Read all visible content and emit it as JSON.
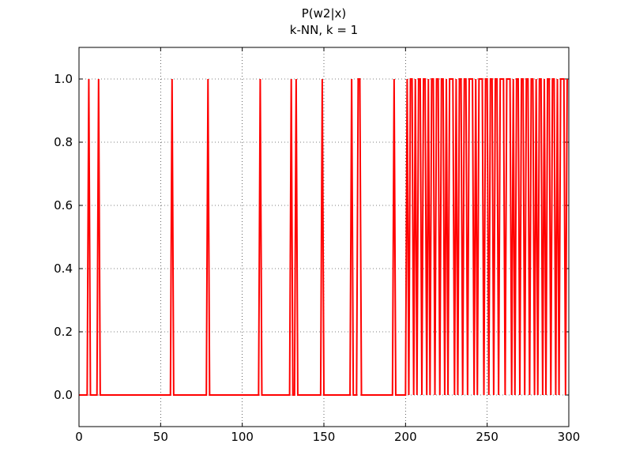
{
  "chart_data": {
    "type": "line",
    "title": "P(w2|x)",
    "subtitle": "k-NN, k = 1",
    "color": "#ff0000",
    "grid": true,
    "xlim": [
      0,
      300
    ],
    "ylim": [
      -0.1,
      1.1
    ],
    "xticks": [
      0,
      50,
      100,
      150,
      200,
      250,
      300
    ],
    "yticks": [
      {
        "value": 0,
        "label": "0.0"
      },
      0.2,
      0.4,
      0.6,
      0.8,
      {
        "value": 1,
        "label": "1.0"
      }
    ],
    "x": [
      0,
      1,
      2,
      3,
      4,
      5,
      6,
      7,
      8,
      9,
      10,
      11,
      12,
      13,
      14,
      15,
      16,
      17,
      18,
      19,
      20,
      21,
      22,
      23,
      24,
      25,
      26,
      27,
      28,
      29,
      30,
      31,
      32,
      33,
      34,
      35,
      36,
      37,
      38,
      39,
      40,
      41,
      42,
      43,
      44,
      45,
      46,
      47,
      48,
      49,
      50,
      51,
      52,
      53,
      54,
      55,
      56,
      57,
      58,
      59,
      60,
      61,
      62,
      63,
      64,
      65,
      66,
      67,
      68,
      69,
      70,
      71,
      72,
      73,
      74,
      75,
      76,
      77,
      78,
      79,
      80,
      81,
      82,
      83,
      84,
      85,
      86,
      87,
      88,
      89,
      90,
      91,
      92,
      93,
      94,
      95,
      96,
      97,
      98,
      99,
      100,
      101,
      102,
      103,
      104,
      105,
      106,
      107,
      108,
      109,
      110,
      111,
      112,
      113,
      114,
      115,
      116,
      117,
      118,
      119,
      120,
      121,
      122,
      123,
      124,
      125,
      126,
      127,
      128,
      129,
      130,
      131,
      132,
      133,
      134,
      135,
      136,
      137,
      138,
      139,
      140,
      141,
      142,
      143,
      144,
      145,
      146,
      147,
      148,
      149,
      150,
      151,
      152,
      153,
      154,
      155,
      156,
      157,
      158,
      159,
      160,
      161,
      162,
      163,
      164,
      165,
      166,
      167,
      168,
      169,
      170,
      171,
      172,
      173,
      174,
      175,
      176,
      177,
      178,
      179,
      180,
      181,
      182,
      183,
      184,
      185,
      186,
      187,
      188,
      189,
      190,
      191,
      192,
      193,
      194,
      195,
      196,
      197,
      198,
      199,
      200,
      201,
      202,
      203,
      204,
      205,
      206,
      207,
      208,
      209,
      210,
      211,
      212,
      213,
      214,
      215,
      216,
      217,
      218,
      219,
      220,
      221,
      222,
      223,
      224,
      225,
      226,
      227,
      228,
      229,
      230,
      231,
      232,
      233,
      234,
      235,
      236,
      237,
      238,
      239,
      240,
      241,
      242,
      243,
      244,
      245,
      246,
      247,
      248,
      249,
      250,
      251,
      252,
      253,
      254,
      255,
      256,
      257,
      258,
      259,
      260,
      261,
      262,
      263,
      264,
      265,
      266,
      267,
      268,
      269,
      270,
      271,
      272,
      273,
      274,
      275,
      276,
      277,
      278,
      279,
      280,
      281,
      282,
      283,
      284,
      285,
      286,
      287,
      288,
      289,
      290,
      291,
      292,
      293,
      294,
      295,
      296,
      297,
      298,
      299
    ],
    "values": [
      0,
      0,
      0,
      0,
      0,
      0,
      1,
      0,
      0,
      0,
      0,
      0,
      1,
      0,
      0,
      0,
      0,
      0,
      0,
      0,
      0,
      0,
      0,
      0,
      0,
      0,
      0,
      0,
      0,
      0,
      0,
      0,
      0,
      0,
      0,
      0,
      0,
      0,
      0,
      0,
      0,
      0,
      0,
      0,
      0,
      0,
      0,
      0,
      0,
      0,
      0,
      0,
      0,
      0,
      0,
      0,
      0,
      1,
      0,
      0,
      0,
      0,
      0,
      0,
      0,
      0,
      0,
      0,
      0,
      0,
      0,
      0,
      0,
      0,
      0,
      0,
      0,
      0,
      0,
      1,
      0,
      0,
      0,
      0,
      0,
      0,
      0,
      0,
      0,
      0,
      0,
      0,
      0,
      0,
      0,
      0,
      0,
      0,
      0,
      0,
      0,
      0,
      0,
      0,
      0,
      0,
      0,
      0,
      0,
      0,
      0,
      1,
      0,
      0,
      0,
      0,
      0,
      0,
      0,
      0,
      0,
      0,
      0,
      0,
      0,
      0,
      0,
      0,
      0,
      0,
      1,
      0,
      0,
      1,
      0,
      0,
      0,
      0,
      0,
      0,
      0,
      0,
      0,
      0,
      0,
      0,
      0,
      0,
      0,
      1,
      0,
      0,
      0,
      0,
      0,
      0,
      0,
      0,
      0,
      0,
      0,
      0,
      0,
      0,
      0,
      0,
      0,
      1,
      0,
      0,
      0,
      1,
      1,
      0,
      0,
      0,
      0,
      0,
      0,
      0,
      0,
      0,
      0,
      0,
      0,
      0,
      0,
      0,
      0,
      0,
      0,
      0,
      0,
      1,
      0,
      0,
      0,
      0,
      0,
      0,
      0,
      1,
      0,
      1,
      1,
      0,
      1,
      0,
      1,
      1,
      0,
      1,
      1,
      0,
      1,
      0,
      1,
      1,
      0,
      1,
      1,
      0,
      1,
      1,
      0,
      1,
      0,
      1,
      1,
      1,
      0,
      1,
      0,
      1,
      1,
      0,
      1,
      1,
      0,
      1,
      1,
      1,
      0,
      1,
      0,
      1,
      1,
      1,
      0,
      1,
      1,
      0,
      1,
      1,
      0,
      1,
      1,
      0,
      1,
      1,
      1,
      0,
      1,
      1,
      1,
      0,
      1,
      0,
      1,
      1,
      0,
      1,
      1,
      0,
      1,
      1,
      0,
      1,
      1,
      0,
      1,
      0,
      1,
      1,
      0,
      1,
      0,
      1,
      1,
      0,
      1,
      1,
      0,
      1,
      0,
      1,
      1,
      1,
      0,
      1
    ]
  }
}
